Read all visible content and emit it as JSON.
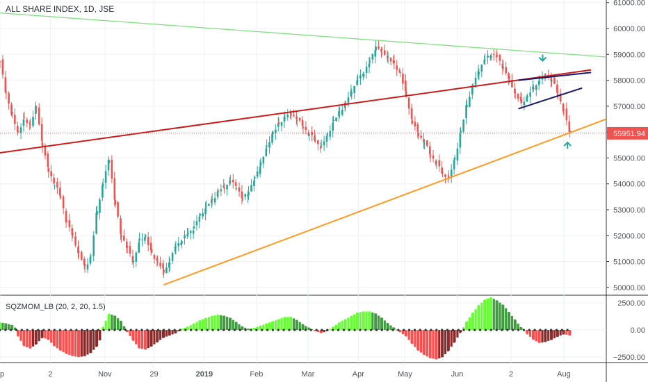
{
  "header": {
    "title": "ALL SHARE INDEX, 1D, JSE"
  },
  "indicator": {
    "label": "SQZMOM_LB (20, 2, 20, 1.5)"
  },
  "colors": {
    "bull": "#26a69a",
    "bear": "#ef5350",
    "green_line": "#7ee07e",
    "red_line": "#cc1a1a",
    "orange_line": "#ff9a1f",
    "navy_line": "#1a1a6e",
    "mom_lime": "#66ff33",
    "mom_green": "#3f9c3f",
    "mom_red": "#ff4d4d",
    "mom_maroon": "#8b2a2a",
    "price_tag": "#ef5350",
    "arrow": "#26a69a",
    "grid": "#eef0f3",
    "axis_text": "#50535e"
  },
  "chart_data": [
    {
      "type": "candlestick",
      "title": "ALL SHARE INDEX, 1D, JSE",
      "y_axis_ticks": [
        "61000.00",
        "60000.00",
        "59000.00",
        "58000.00",
        "57000.00",
        "56000.00",
        "55000.00",
        "54000.00",
        "53000.00",
        "52000.00",
        "51000.00",
        "50000.00"
      ],
      "ylim": [
        49700,
        61100
      ],
      "x_axis_ticks": [
        "ep",
        "2",
        "Nov",
        "29",
        "2019",
        "Feb",
        "Mar",
        "Apr",
        "May",
        "Jun",
        "2",
        "Aug"
      ],
      "last_price_label": "55951.94",
      "trendlines": [
        {
          "color": "green",
          "from": [
            0.0,
            60600
          ],
          "to": [
            1.0,
            58900
          ]
        },
        {
          "color": "red",
          "from": [
            0.0,
            55200
          ],
          "to": [
            0.975,
            58400
          ]
        },
        {
          "color": "orange",
          "from": [
            0.27,
            50100
          ],
          "to": [
            1.0,
            56500
          ]
        },
        {
          "color": "navy",
          "from": [
            0.855,
            58000
          ],
          "to": [
            0.975,
            58300
          ]
        },
        {
          "color": "navy",
          "from": [
            0.855,
            56900
          ],
          "to": [
            0.96,
            57700
          ]
        }
      ],
      "series": [
        {
          "label": "price path",
          "points": [
            [
              0.0,
              58700
            ],
            [
              0.01,
              57500
            ],
            [
              0.02,
              56600
            ],
            [
              0.03,
              56000
            ],
            [
              0.04,
              56500
            ],
            [
              0.05,
              56300
            ],
            [
              0.06,
              57000
            ],
            [
              0.07,
              55500
            ],
            [
              0.08,
              54500
            ],
            [
              0.09,
              54000
            ],
            [
              0.1,
              53500
            ],
            [
              0.11,
              52500
            ],
            [
              0.12,
              52000
            ],
            [
              0.13,
              51300
            ],
            [
              0.14,
              50800
            ],
            [
              0.15,
              51200
            ],
            [
              0.16,
              53000
            ],
            [
              0.17,
              54000
            ],
            [
              0.18,
              55000
            ],
            [
              0.19,
              53200
            ],
            [
              0.2,
              52000
            ],
            [
              0.21,
              51500
            ],
            [
              0.22,
              51000
            ],
            [
              0.23,
              51800
            ],
            [
              0.24,
              52000
            ],
            [
              0.25,
              51300
            ],
            [
              0.26,
              51000
            ],
            [
              0.27,
              50600
            ],
            [
              0.28,
              51000
            ],
            [
              0.29,
              51600
            ],
            [
              0.3,
              51800
            ],
            [
              0.31,
              52100
            ],
            [
              0.32,
              52300
            ],
            [
              0.33,
              52800
            ],
            [
              0.34,
              53100
            ],
            [
              0.35,
              53400
            ],
            [
              0.36,
              53700
            ],
            [
              0.37,
              53900
            ],
            [
              0.38,
              54100
            ],
            [
              0.39,
              53900
            ],
            [
              0.4,
              53400
            ],
            [
              0.41,
              53700
            ],
            [
              0.42,
              54200
            ],
            [
              0.43,
              54800
            ],
            [
              0.44,
              55400
            ],
            [
              0.45,
              56000
            ],
            [
              0.46,
              56300
            ],
            [
              0.47,
              56600
            ],
            [
              0.48,
              56700
            ],
            [
              0.49,
              56500
            ],
            [
              0.5,
              56200
            ],
            [
              0.51,
              55900
            ],
            [
              0.52,
              55700
            ],
            [
              0.53,
              55400
            ],
            [
              0.54,
              55900
            ],
            [
              0.55,
              56400
            ],
            [
              0.56,
              56800
            ],
            [
              0.57,
              57100
            ],
            [
              0.58,
              57600
            ],
            [
              0.59,
              58000
            ],
            [
              0.6,
              58300
            ],
            [
              0.61,
              58700
            ],
            [
              0.62,
              59300
            ],
            [
              0.63,
              59100
            ],
            [
              0.64,
              58900
            ],
            [
              0.65,
              58600
            ],
            [
              0.66,
              58300
            ],
            [
              0.67,
              57400
            ],
            [
              0.68,
              56400
            ],
            [
              0.69,
              55900
            ],
            [
              0.7,
              55600
            ],
            [
              0.71,
              55100
            ],
            [
              0.72,
              54800
            ],
            [
              0.73,
              54400
            ],
            [
              0.74,
              54200
            ],
            [
              0.75,
              55000
            ],
            [
              0.76,
              56000
            ],
            [
              0.77,
              57100
            ],
            [
              0.78,
              57800
            ],
            [
              0.79,
              58400
            ],
            [
              0.8,
              58800
            ],
            [
              0.81,
              59000
            ],
            [
              0.82,
              58900
            ],
            [
              0.83,
              58500
            ],
            [
              0.84,
              58000
            ],
            [
              0.85,
              57500
            ],
            [
              0.86,
              57100
            ],
            [
              0.87,
              57400
            ],
            [
              0.88,
              57700
            ],
            [
              0.89,
              58000
            ],
            [
              0.9,
              58200
            ],
            [
              0.91,
              58000
            ],
            [
              0.92,
              57500
            ],
            [
              0.93,
              56800
            ],
            [
              0.94,
              55950
            ]
          ]
        }
      ]
    },
    {
      "type": "bar",
      "title": "SQZMOM_LB (20, 2, 20, 1.5)",
      "y_axis_ticks": [
        "2500.00",
        "0.00",
        "−2500.00"
      ],
      "ylim": [
        -3000,
        3200
      ],
      "series": [
        {
          "label": "momentum",
          "points": [
            [
              0.0,
              700
            ],
            [
              0.01,
              600
            ],
            [
              0.02,
              450
            ],
            [
              0.025,
              200
            ],
            [
              0.03,
              -600
            ],
            [
              0.04,
              -1500
            ],
            [
              0.05,
              -1700
            ],
            [
              0.06,
              -1300
            ],
            [
              0.07,
              -700
            ],
            [
              0.08,
              -900
            ],
            [
              0.09,
              -1500
            ],
            [
              0.1,
              -1900
            ],
            [
              0.11,
              -2200
            ],
            [
              0.12,
              -2400
            ],
            [
              0.13,
              -2500
            ],
            [
              0.14,
              -2400
            ],
            [
              0.15,
              -2100
            ],
            [
              0.16,
              -1500
            ],
            [
              0.165,
              -900
            ],
            [
              0.17,
              300
            ],
            [
              0.18,
              1500
            ],
            [
              0.19,
              1300
            ],
            [
              0.2,
              800
            ],
            [
              0.205,
              300
            ],
            [
              0.21,
              -200
            ],
            [
              0.22,
              -1000
            ],
            [
              0.23,
              -1700
            ],
            [
              0.24,
              -1800
            ],
            [
              0.25,
              -1500
            ],
            [
              0.26,
              -1100
            ],
            [
              0.27,
              -700
            ],
            [
              0.28,
              -500
            ],
            [
              0.29,
              -300
            ],
            [
              0.3,
              100
            ],
            [
              0.31,
              300
            ],
            [
              0.32,
              600
            ],
            [
              0.33,
              900
            ],
            [
              0.34,
              1100
            ],
            [
              0.35,
              1300
            ],
            [
              0.36,
              1400
            ],
            [
              0.37,
              1300
            ],
            [
              0.38,
              1100
            ],
            [
              0.39,
              700
            ],
            [
              0.4,
              300
            ],
            [
              0.41,
              100
            ],
            [
              0.42,
              200
            ],
            [
              0.43,
              400
            ],
            [
              0.44,
              600
            ],
            [
              0.45,
              800
            ],
            [
              0.46,
              1000
            ],
            [
              0.47,
              1200
            ],
            [
              0.48,
              1200
            ],
            [
              0.49,
              900
            ],
            [
              0.5,
              500
            ],
            [
              0.51,
              200
            ],
            [
              0.52,
              -100
            ],
            [
              0.53,
              -300
            ],
            [
              0.54,
              -100
            ],
            [
              0.55,
              300
            ],
            [
              0.56,
              700
            ],
            [
              0.57,
              1000
            ],
            [
              0.58,
              1300
            ],
            [
              0.59,
              1600
            ],
            [
              0.6,
              1700
            ],
            [
              0.61,
              1700
            ],
            [
              0.62,
              1500
            ],
            [
              0.63,
              1100
            ],
            [
              0.64,
              600
            ],
            [
              0.65,
              200
            ],
            [
              0.66,
              -200
            ],
            [
              0.67,
              -600
            ],
            [
              0.68,
              -1300
            ],
            [
              0.69,
              -1900
            ],
            [
              0.7,
              -2300
            ],
            [
              0.71,
              -2600
            ],
            [
              0.72,
              -2700
            ],
            [
              0.73,
              -2500
            ],
            [
              0.74,
              -1900
            ],
            [
              0.75,
              -1100
            ],
            [
              0.76,
              -200
            ],
            [
              0.77,
              800
            ],
            [
              0.78,
              1600
            ],
            [
              0.79,
              2300
            ],
            [
              0.8,
              2800
            ],
            [
              0.81,
              3000
            ],
            [
              0.82,
              2700
            ],
            [
              0.83,
              2300
            ],
            [
              0.84,
              1600
            ],
            [
              0.85,
              900
            ],
            [
              0.86,
              200
            ],
            [
              0.87,
              -400
            ],
            [
              0.88,
              -900
            ],
            [
              0.89,
              -1200
            ],
            [
              0.9,
              -1100
            ],
            [
              0.91,
              -900
            ],
            [
              0.92,
              -600
            ],
            [
              0.93,
              -400
            ],
            [
              0.94,
              -500
            ]
          ]
        }
      ]
    }
  ]
}
